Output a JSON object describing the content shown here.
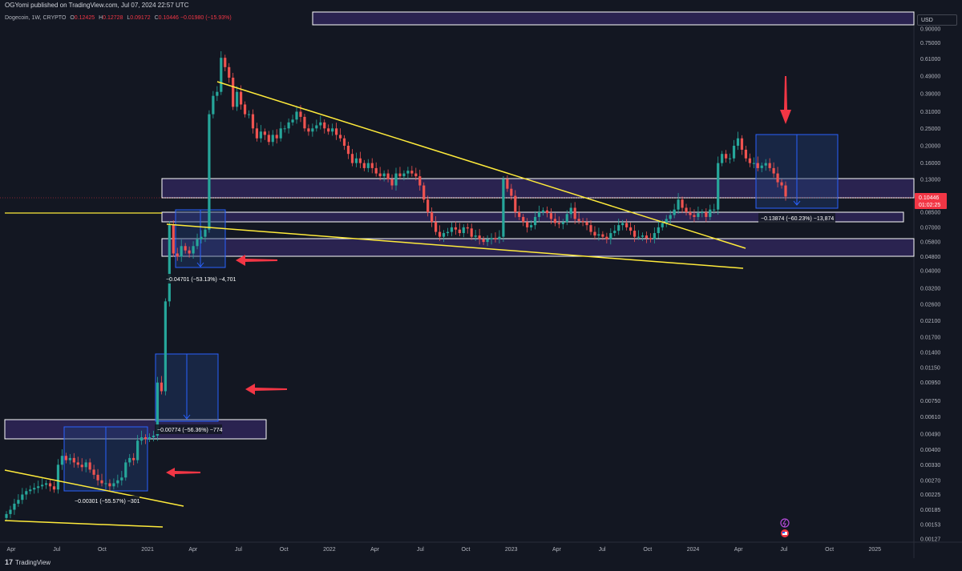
{
  "header": {
    "published": "OGYomi published on TradingView.com, Jul 07, 2024 22:57 UTC"
  },
  "legend": {
    "symbol": "Dogecoin, 1W, CRYPTO",
    "o_label": "O",
    "o": "0.12425",
    "h_label": "H",
    "h": "0.12728",
    "l_label": "L",
    "l": "0.09172",
    "c_label": "C",
    "c": "0.10446",
    "change": "−0.01980 (−15.93%)"
  },
  "currency": "USD",
  "footer": {
    "brand": "TradingView",
    "logo": "17"
  },
  "colors": {
    "background": "#131722",
    "up": "#26a69a",
    "down": "#ef5350",
    "trendline": "#ffeb3b",
    "zone_fill": "#2a2350",
    "zone_border": "#ffffff",
    "measure_fill": "#1e3a6e",
    "measure_line": "#2962ff",
    "arrow": "#f23645",
    "price_tag": "#f23645"
  },
  "chart_data": {
    "type": "candlestick",
    "scale": "log",
    "ylim": [
      0.00127,
      0.9
    ],
    "y_ticks": [
      "0.90000",
      "0.75000",
      "0.61000",
      "0.49000",
      "0.39000",
      "0.31000",
      "0.25000",
      "0.20000",
      "0.16000",
      "0.13000",
      "0.10446",
      "0.08500",
      "0.07000",
      "0.05800",
      "0.04800",
      "0.04000",
      "0.03200",
      "0.02600",
      "0.02100",
      "0.01700",
      "0.01400",
      "0.01150",
      "0.00950",
      "0.00750",
      "0.00610",
      "0.00490",
      "0.00400",
      "0.00330",
      "0.00270",
      "0.00225",
      "0.00185",
      "0.00153",
      "0.00127"
    ],
    "x_ticks": [
      "Apr",
      "Jul",
      "Oct",
      "2021",
      "Apr",
      "Jul",
      "Oct",
      "2022",
      "Apr",
      "Jul",
      "Oct",
      "2023",
      "Apr",
      "Jul",
      "Oct",
      "2024",
      "Apr",
      "Jul",
      "Oct",
      "2025"
    ],
    "last_price": "0.10446",
    "countdown": "01:02:25",
    "measurements": [
      {
        "label": "−0.00301 (−55.57%) −301"
      },
      {
        "label": "−0.00774 (−56.36%) −774"
      },
      {
        "label": "−0.04701 (−53.13%) −4,701"
      },
      {
        "label": "−0.13874 (−60.23%) −13,874"
      }
    ],
    "closes": [
      0.00175,
      0.00185,
      0.002,
      0.0021,
      0.00225,
      0.00235,
      0.0024,
      0.00245,
      0.0025,
      0.00255,
      0.0026,
      0.0025,
      0.0024,
      0.0033,
      0.0037,
      0.0035,
      0.0036,
      0.0034,
      0.0033,
      0.0032,
      0.0034,
      0.0031,
      0.0029,
      0.0027,
      0.0026,
      0.0026,
      0.0025,
      0.0026,
      0.0027,
      0.0028,
      0.0034,
      0.0036,
      0.0035,
      0.0045,
      0.0047,
      0.0046,
      0.0047,
      0.0048,
      0.0095,
      0.0085,
      0.027,
      0.072,
      0.05,
      0.048,
      0.055,
      0.052,
      0.05,
      0.055,
      0.06,
      0.062,
      0.068,
      0.3,
      0.38,
      0.4,
      0.62,
      0.55,
      0.48,
      0.33,
      0.4,
      0.34,
      0.3,
      0.3,
      0.25,
      0.22,
      0.24,
      0.23,
      0.21,
      0.23,
      0.22,
      0.25,
      0.25,
      0.27,
      0.28,
      0.31,
      0.29,
      0.25,
      0.24,
      0.25,
      0.26,
      0.27,
      0.25,
      0.24,
      0.25,
      0.23,
      0.22,
      0.2,
      0.18,
      0.16,
      0.17,
      0.16,
      0.15,
      0.16,
      0.15,
      0.14,
      0.135,
      0.14,
      0.13,
      0.12,
      0.14,
      0.135,
      0.14,
      0.145,
      0.14,
      0.135,
      0.12,
      0.1,
      0.085,
      0.075,
      0.066,
      0.062,
      0.065,
      0.066,
      0.07,
      0.068,
      0.065,
      0.07,
      0.069,
      0.062,
      0.063,
      0.06,
      0.058,
      0.06,
      0.061,
      0.06,
      0.062,
      0.13,
      0.115,
      0.105,
      0.085,
      0.08,
      0.075,
      0.07,
      0.072,
      0.08,
      0.085,
      0.087,
      0.084,
      0.078,
      0.074,
      0.073,
      0.075,
      0.083,
      0.09,
      0.078,
      0.076,
      0.075,
      0.072,
      0.066,
      0.063,
      0.064,
      0.062,
      0.06,
      0.065,
      0.067,
      0.072,
      0.074,
      0.07,
      0.067,
      0.062,
      0.062,
      0.063,
      0.061,
      0.06,
      0.065,
      0.07,
      0.074,
      0.078,
      0.082,
      0.088,
      0.1,
      0.09,
      0.085,
      0.082,
      0.08,
      0.084,
      0.085,
      0.08,
      0.088,
      0.088,
      0.16,
      0.18,
      0.17,
      0.17,
      0.2,
      0.22,
      0.19,
      0.17,
      0.16,
      0.16,
      0.15,
      0.155,
      0.16,
      0.15,
      0.14,
      0.125,
      0.12,
      0.104
    ]
  }
}
